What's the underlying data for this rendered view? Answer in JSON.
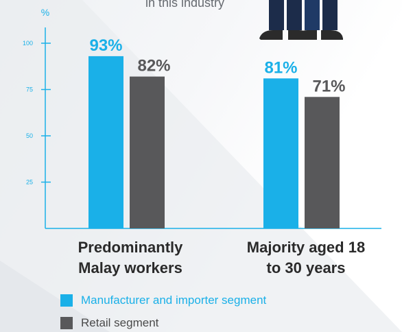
{
  "caption": "in this industry",
  "chart_data": {
    "type": "bar",
    "ylabel": "%",
    "ylim": [
      0,
      120
    ],
    "yticks": [
      25,
      50,
      75,
      100
    ],
    "categories": [
      "Predominantly\nMalay workers",
      "Majority aged 18\nto 30 years"
    ],
    "series": [
      {
        "name": "Manufacturer and importer segment",
        "values": [
          93,
          81
        ],
        "labels": [
          "93%",
          "81%"
        ],
        "color": "#1ab0e8"
      },
      {
        "name": "Retail segment",
        "values": [
          82,
          71
        ],
        "labels": [
          "82%",
          "71%"
        ],
        "color": "#58585a"
      }
    ],
    "grid": false,
    "legend_position": "bottom-left"
  },
  "colors": {
    "axis": "#1ab0e8",
    "manufacturer_label": "#1ab0e8",
    "retail_label": "#58585a",
    "legend_manufacturer_text": "#1ab0e8",
    "legend_retail_text": "#4a4a4a"
  }
}
